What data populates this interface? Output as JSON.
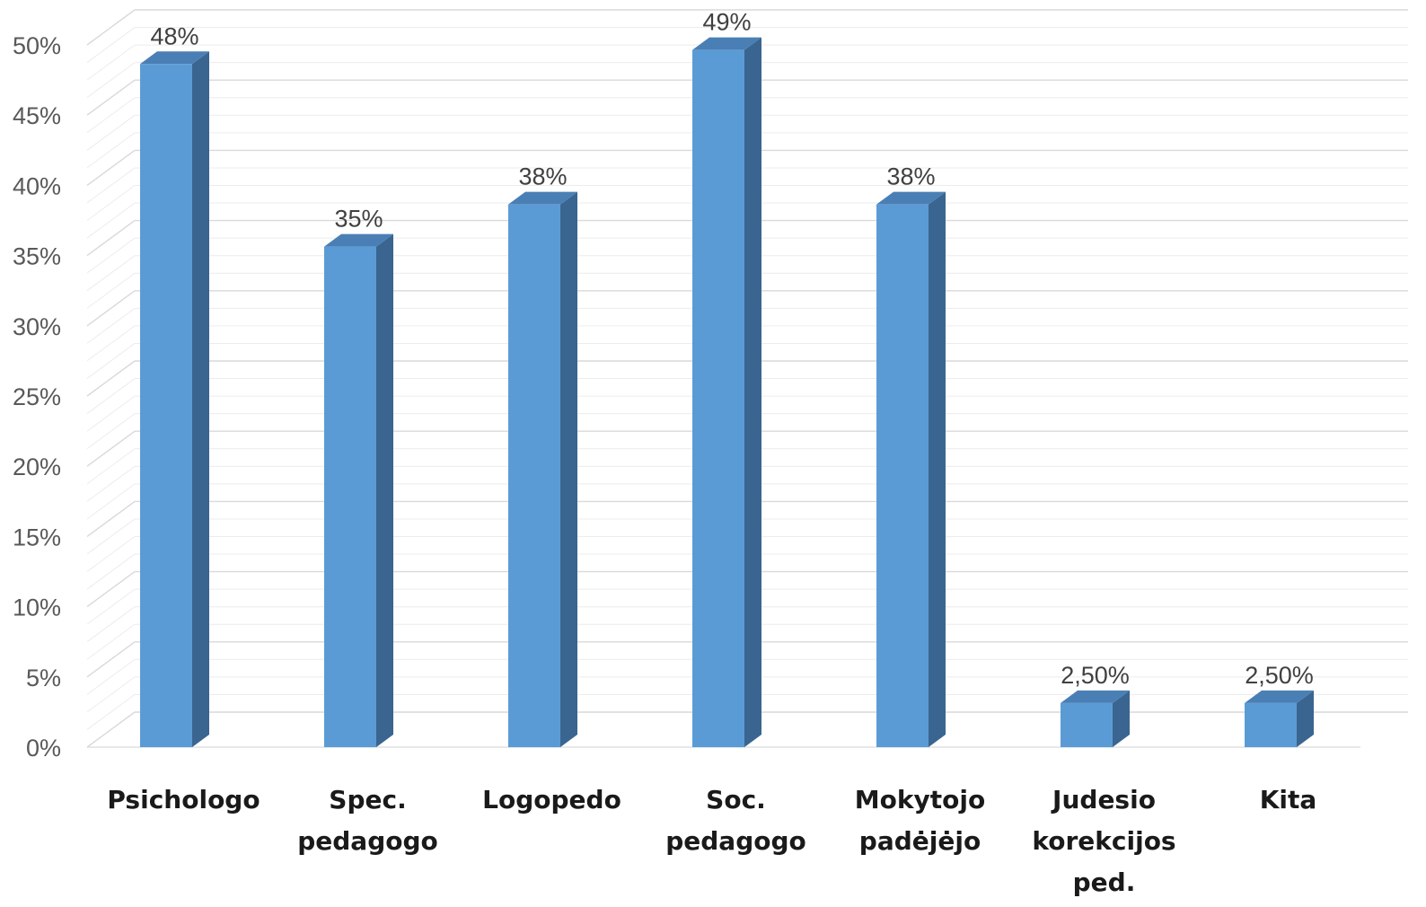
{
  "chart_data": {
    "type": "bar",
    "title": "",
    "xlabel": "",
    "ylabel": "",
    "categories": [
      [
        "Psichologo"
      ],
      [
        "Spec.",
        "pedagogo"
      ],
      [
        "Logopedo"
      ],
      [
        "Soc.",
        "pedagogo"
      ],
      [
        "Mokytojo",
        "padėjėjo"
      ],
      [
        "Judesio",
        "korekcijos",
        "ped."
      ],
      [
        "Kita"
      ]
    ],
    "values": [
      48,
      35,
      38,
      49,
      38,
      2.5,
      2.5
    ],
    "data_labels": [
      "48%",
      "35%",
      "38%",
      "49%",
      "38%",
      "2,50%",
      "2,50%"
    ],
    "ylim": [
      0,
      50
    ],
    "yticks": [
      0,
      5,
      10,
      15,
      20,
      25,
      30,
      35,
      40,
      45,
      50
    ],
    "ytick_labels": [
      "0%",
      "5%",
      "10%",
      "15%",
      "20%",
      "25%",
      "30%",
      "35%",
      "40%",
      "45%",
      "50%"
    ],
    "grid": true,
    "legend": "none",
    "style": "3d-column",
    "colors": {
      "bar_front": "#5b9bd5",
      "bar_side": "#3a6590",
      "bar_top": "#4a7fb5",
      "grid_major": "#d9d9d9",
      "grid_minor": "#ececec"
    }
  }
}
